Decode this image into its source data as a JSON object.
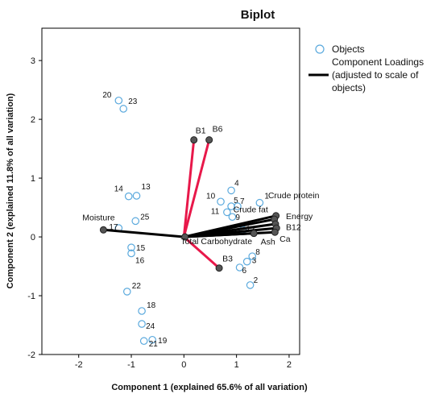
{
  "chart_data": {
    "type": "scatter",
    "title": "Biplot",
    "xlabel": "Component 1 (explained 65.6% of all variation)",
    "ylabel": "Component 2 (explained 11.8% of all variation)",
    "xlim": [
      -2.7,
      2.2
    ],
    "ylim": [
      -2.0,
      3.55
    ],
    "xticks": [
      -2,
      -1,
      0,
      1,
      2
    ],
    "yticks": [
      -2,
      -1,
      0,
      1,
      2,
      3
    ],
    "grid": false,
    "legend_position": "top-right",
    "legend": {
      "objects_label": "Objects",
      "loadings_label_lines": [
        "Component Loadings",
        "(adjusted to scale of",
        "objects)"
      ]
    },
    "objects": [
      {
        "label": "1",
        "x": 1.44,
        "y": 0.58
      },
      {
        "label": "2",
        "x": 1.26,
        "y": -0.82
      },
      {
        "label": "3",
        "x": 1.2,
        "y": -0.42
      },
      {
        "label": "4",
        "x": 0.9,
        "y": 0.79
      },
      {
        "label": "5",
        "x": 0.9,
        "y": 0.52
      },
      {
        "label": "6",
        "x": 1.06,
        "y": -0.52
      },
      {
        "label": "7",
        "x": 1.02,
        "y": 0.52
      },
      {
        "label": "8",
        "x": 1.3,
        "y": -0.33
      },
      {
        "label": "9",
        "x": 0.92,
        "y": 0.34
      },
      {
        "label": "10",
        "x": 0.7,
        "y": 0.6
      },
      {
        "label": "11",
        "x": 0.82,
        "y": 0.42
      },
      {
        "label": "12",
        "x": 1.12,
        "y": 0.12
      },
      {
        "label": "13",
        "x": -0.9,
        "y": 0.7
      },
      {
        "label": "14",
        "x": -1.05,
        "y": 0.69
      },
      {
        "label": "15",
        "x": -1.0,
        "y": -0.18
      },
      {
        "label": "16",
        "x": -1.0,
        "y": -0.28
      },
      {
        "label": "17",
        "x": -1.24,
        "y": 0.15
      },
      {
        "label": "18",
        "x": -0.8,
        "y": -1.26
      },
      {
        "label": "19",
        "x": -0.6,
        "y": -1.75
      },
      {
        "label": "20",
        "x": -1.24,
        "y": 2.32
      },
      {
        "label": "21",
        "x": -0.76,
        "y": -1.77
      },
      {
        "label": "22",
        "x": -1.08,
        "y": -0.93
      },
      {
        "label": "23",
        "x": -1.15,
        "y": 2.18
      },
      {
        "label": "24",
        "x": -0.8,
        "y": -1.48
      },
      {
        "label": "25",
        "x": -0.92,
        "y": 0.27
      }
    ],
    "loadings": [
      {
        "name": "B1",
        "x": 0.19,
        "y": 1.65,
        "color": "#e8184a"
      },
      {
        "name": "B6",
        "x": 0.48,
        "y": 1.65,
        "color": "#e8184a"
      },
      {
        "name": "B3",
        "x": 0.67,
        "y": -0.53,
        "color": "#e8184a"
      },
      {
        "name": "Moisture",
        "x": -1.53,
        "y": 0.12,
        "color": "#000000"
      },
      {
        "name": "Total Carbohydrate",
        "x": 0.02,
        "y": 0.0,
        "color": "#000000"
      },
      {
        "name": "Crude protein",
        "x": 1.75,
        "y": 0.36,
        "color": "#000000"
      },
      {
        "name": "Crude fat",
        "x": 1.72,
        "y": 0.3,
        "color": "#000000"
      },
      {
        "name": "Energy",
        "x": 1.74,
        "y": 0.22,
        "color": "#000000"
      },
      {
        "name": "B12",
        "x": 1.76,
        "y": 0.15,
        "color": "#000000"
      },
      {
        "name": "Ash",
        "x": 1.33,
        "y": 0.06,
        "color": "#000000"
      },
      {
        "name": "Ca",
        "x": 1.73,
        "y": 0.08,
        "color": "#000000"
      }
    ],
    "colors": {
      "object_marker": "#5aa9dd",
      "loading_black": "#000000",
      "loading_red": "#e8184a",
      "endpoint_fill": "#555555"
    }
  }
}
